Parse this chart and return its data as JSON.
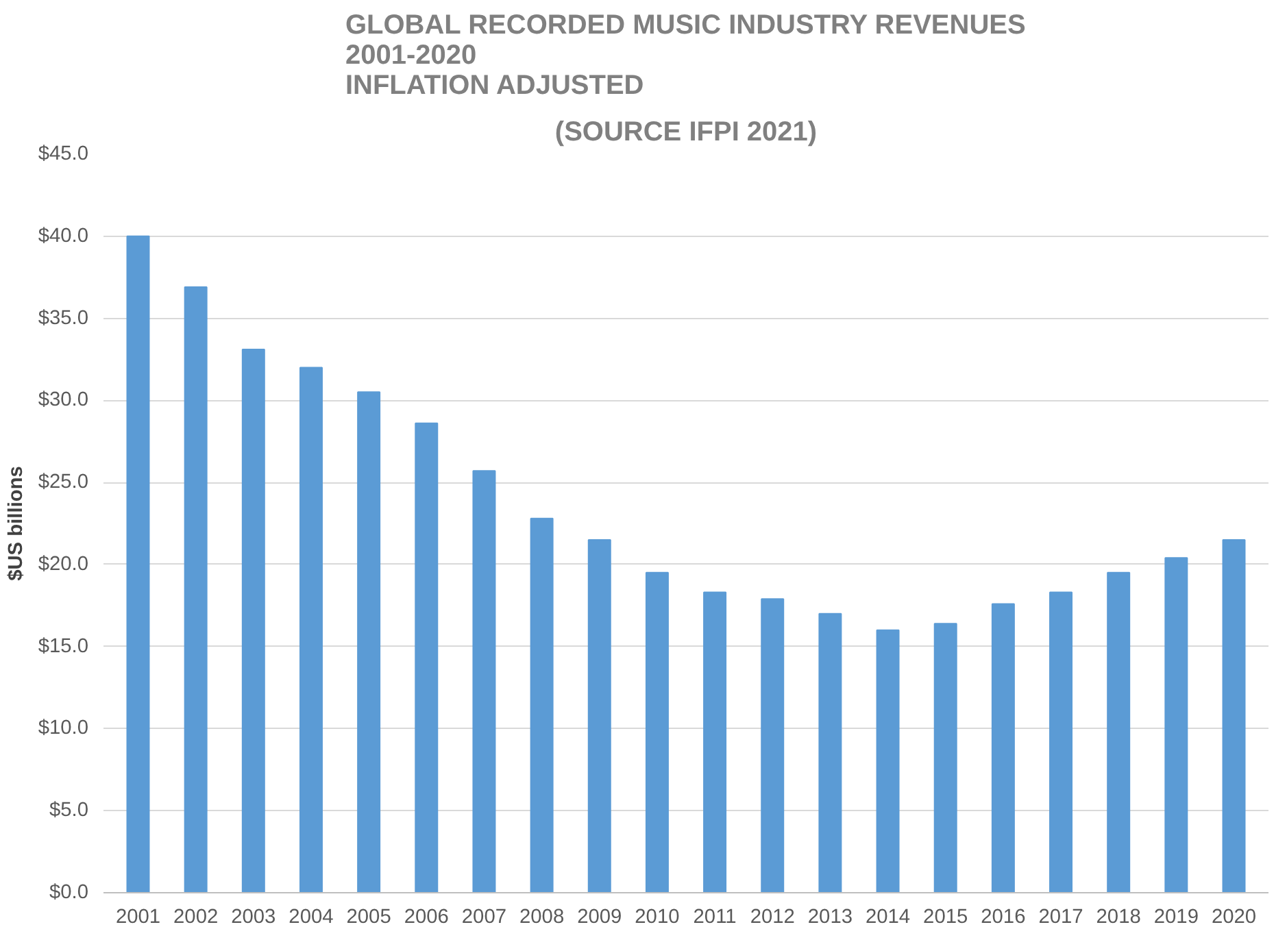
{
  "chart_data": {
    "type": "bar",
    "title": "GLOBAL RECORDED MUSIC INDUSTRY REVENUES\n2001-2020\nINFLATION ADJUSTED",
    "annotations": [
      "(SOURCE IFPI 2021)"
    ],
    "ylabel": "$US billions",
    "categories": [
      "2001",
      "2002",
      "2003",
      "2004",
      "2005",
      "2006",
      "2007",
      "2008",
      "2009",
      "2010",
      "2011",
      "2012",
      "2013",
      "2014",
      "2015",
      "2016",
      "2017",
      "2018",
      "2019",
      "2020"
    ],
    "values": [
      40.0,
      36.9,
      33.1,
      32.0,
      30.5,
      28.6,
      25.7,
      22.8,
      21.5,
      19.5,
      18.3,
      17.9,
      17.0,
      16.0,
      16.4,
      17.6,
      18.3,
      19.5,
      20.4,
      21.5
    ],
    "color": "#5b9bd5",
    "ylim": [
      0,
      45
    ],
    "yticks": [
      {
        "value": 0,
        "label": "$0.0"
      },
      {
        "value": 5,
        "label": "$5.0"
      },
      {
        "value": 10,
        "label": "$10.0"
      },
      {
        "value": 15,
        "label": "$15.0"
      },
      {
        "value": 20,
        "label": "$20.0"
      },
      {
        "value": 25,
        "label": "$25.0"
      },
      {
        "value": 30,
        "label": "$30.0"
      },
      {
        "value": 35,
        "label": "$35.0"
      },
      {
        "value": 40,
        "label": "$40.0"
      },
      {
        "value": 45,
        "label": "$45.0"
      }
    ],
    "grid": "y"
  }
}
